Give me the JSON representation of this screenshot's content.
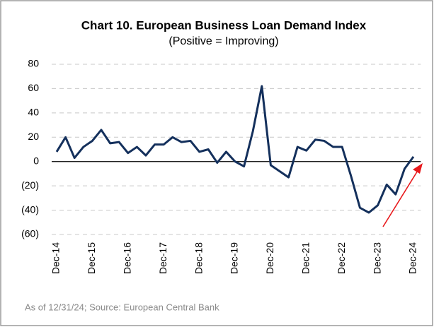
{
  "chart_data": {
    "type": "line",
    "title": "Chart 10. European Business Loan Demand Index",
    "subtitle": "(Positive = Improving)",
    "source": "As of 12/31/24; Source: European Central Bank",
    "categories": [
      "Dec-14",
      null,
      null,
      null,
      "Dec-15",
      null,
      null,
      null,
      "Dec-16",
      null,
      null,
      null,
      "Dec-17",
      null,
      null,
      null,
      "Dec-18",
      null,
      null,
      null,
      "Dec-19",
      null,
      null,
      null,
      "Dec-20",
      null,
      null,
      null,
      "Dec-21",
      null,
      null,
      null,
      "Dec-22",
      null,
      null,
      null,
      "Dec-23",
      null,
      null,
      null,
      "Dec-24"
    ],
    "values": [
      8,
      20,
      3,
      12,
      17,
      26,
      15,
      16,
      7,
      12,
      5,
      14,
      14,
      20,
      16,
      17,
      8,
      10,
      -1,
      8,
      0,
      -4,
      25,
      62,
      -3,
      -8,
      -13,
      12,
      9,
      18,
      17,
      12,
      12,
      -12,
      -38,
      -42,
      -36,
      -19,
      -27,
      -6,
      4
    ],
    "color": "#14305c",
    "ylim": [
      -60,
      80
    ],
    "yticks": [
      {
        "value": -60,
        "label": "(60)"
      },
      {
        "value": -40,
        "label": "(40)"
      },
      {
        "value": -20,
        "label": "(20)"
      },
      0,
      20,
      40,
      60,
      80
    ],
    "grid": true
  }
}
